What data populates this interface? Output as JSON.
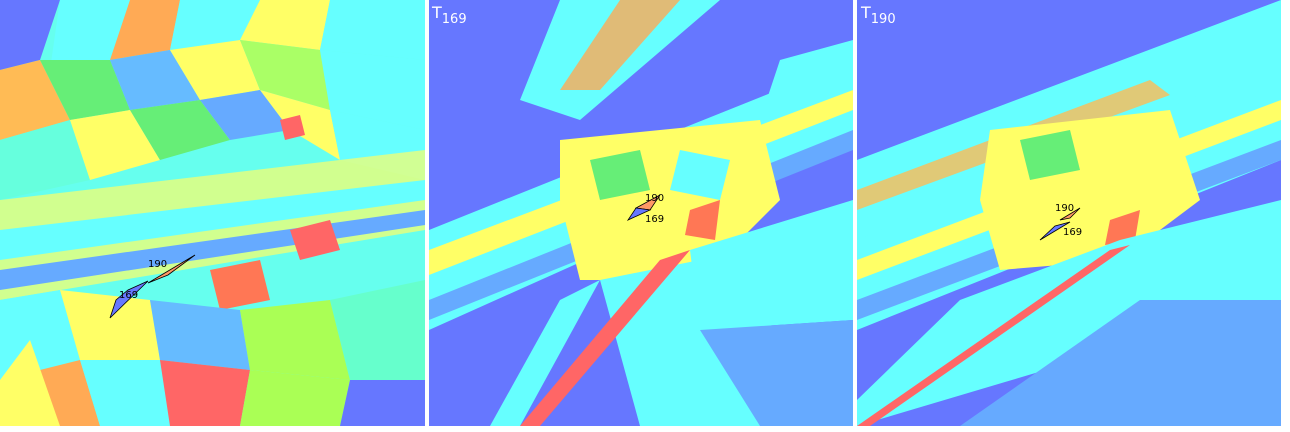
{
  "panels": [
    {
      "labels": [
        "190",
        "169"
      ]
    },
    {
      "title": {
        "main": "T",
        "sub": "169"
      },
      "labels": [
        "190",
        "169"
      ]
    },
    {
      "title": {
        "main": "T",
        "sub": "190"
      },
      "labels": [
        "190",
        "169"
      ]
    }
  ]
}
